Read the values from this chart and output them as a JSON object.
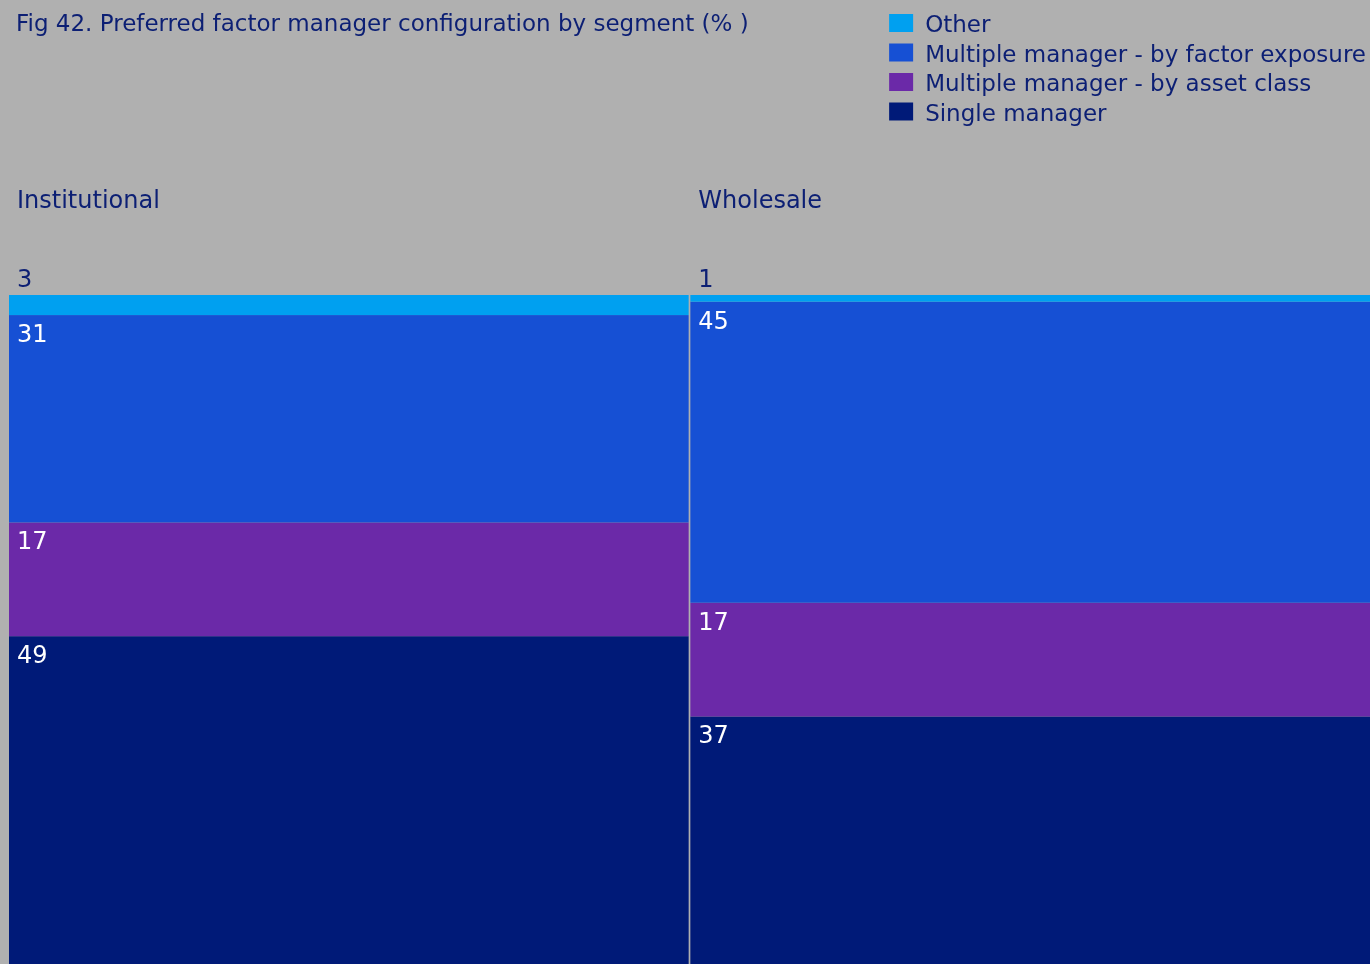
{
  "chart_data": {
    "type": "bar",
    "title": "Fig 42. Preferred factor manager configuration by segment (% )",
    "categories": [
      "Institutional",
      "Wholesale"
    ],
    "stacked": true,
    "data_labels": true,
    "legend": "top right",
    "grid": false,
    "ylim": [
      0,
      100
    ],
    "tick_labels": "x",
    "series": [
      {
        "name": "Single manager",
        "color": "#001a78",
        "values": [
          49,
          37
        ]
      },
      {
        "name": "Multiple manager - by asset class",
        "color": "#6b29a8",
        "values": [
          17,
          17
        ]
      },
      {
        "name": "Multiple manager - by factor exposure",
        "color": "#1650d4",
        "values": [
          31,
          45
        ]
      },
      {
        "name": "Other",
        "color": "#00a0f0",
        "values": [
          3,
          1
        ]
      }
    ]
  }
}
